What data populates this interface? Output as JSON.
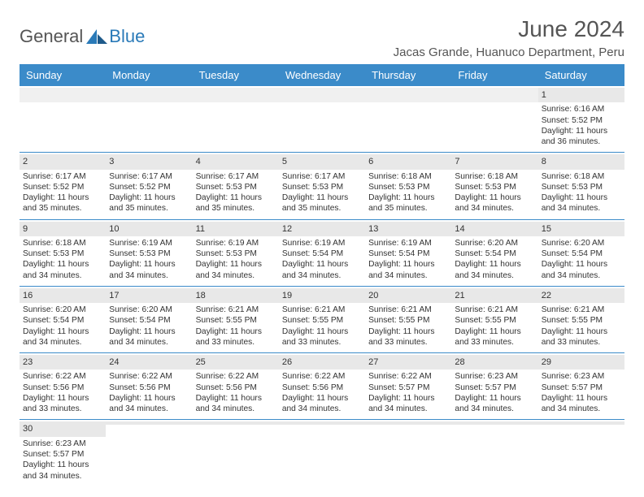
{
  "logo": {
    "part1": "General",
    "part2": "Blue"
  },
  "title": "June 2024",
  "location": "Jacas Grande, Huanuco Department, Peru",
  "colors": {
    "header_bg": "#3b8bc9",
    "header_text": "#ffffff",
    "daynum_bg": "#e8e8e8",
    "border": "#3b8bc9",
    "text": "#333333",
    "logo_blue": "#2a7ab8",
    "logo_gray": "#555555"
  },
  "layout": {
    "type": "calendar",
    "columns": 7,
    "rows": 6,
    "start_day_index": 6
  },
  "day_names": [
    "Sunday",
    "Monday",
    "Tuesday",
    "Wednesday",
    "Thursday",
    "Friday",
    "Saturday"
  ],
  "days": [
    {
      "n": 1,
      "sunrise": "6:16 AM",
      "sunset": "5:52 PM",
      "daylight": "11 hours and 36 minutes."
    },
    {
      "n": 2,
      "sunrise": "6:17 AM",
      "sunset": "5:52 PM",
      "daylight": "11 hours and 35 minutes."
    },
    {
      "n": 3,
      "sunrise": "6:17 AM",
      "sunset": "5:52 PM",
      "daylight": "11 hours and 35 minutes."
    },
    {
      "n": 4,
      "sunrise": "6:17 AM",
      "sunset": "5:53 PM",
      "daylight": "11 hours and 35 minutes."
    },
    {
      "n": 5,
      "sunrise": "6:17 AM",
      "sunset": "5:53 PM",
      "daylight": "11 hours and 35 minutes."
    },
    {
      "n": 6,
      "sunrise": "6:18 AM",
      "sunset": "5:53 PM",
      "daylight": "11 hours and 35 minutes."
    },
    {
      "n": 7,
      "sunrise": "6:18 AM",
      "sunset": "5:53 PM",
      "daylight": "11 hours and 34 minutes."
    },
    {
      "n": 8,
      "sunrise": "6:18 AM",
      "sunset": "5:53 PM",
      "daylight": "11 hours and 34 minutes."
    },
    {
      "n": 9,
      "sunrise": "6:18 AM",
      "sunset": "5:53 PM",
      "daylight": "11 hours and 34 minutes."
    },
    {
      "n": 10,
      "sunrise": "6:19 AM",
      "sunset": "5:53 PM",
      "daylight": "11 hours and 34 minutes."
    },
    {
      "n": 11,
      "sunrise": "6:19 AM",
      "sunset": "5:53 PM",
      "daylight": "11 hours and 34 minutes."
    },
    {
      "n": 12,
      "sunrise": "6:19 AM",
      "sunset": "5:54 PM",
      "daylight": "11 hours and 34 minutes."
    },
    {
      "n": 13,
      "sunrise": "6:19 AM",
      "sunset": "5:54 PM",
      "daylight": "11 hours and 34 minutes."
    },
    {
      "n": 14,
      "sunrise": "6:20 AM",
      "sunset": "5:54 PM",
      "daylight": "11 hours and 34 minutes."
    },
    {
      "n": 15,
      "sunrise": "6:20 AM",
      "sunset": "5:54 PM",
      "daylight": "11 hours and 34 minutes."
    },
    {
      "n": 16,
      "sunrise": "6:20 AM",
      "sunset": "5:54 PM",
      "daylight": "11 hours and 34 minutes."
    },
    {
      "n": 17,
      "sunrise": "6:20 AM",
      "sunset": "5:54 PM",
      "daylight": "11 hours and 34 minutes."
    },
    {
      "n": 18,
      "sunrise": "6:21 AM",
      "sunset": "5:55 PM",
      "daylight": "11 hours and 33 minutes."
    },
    {
      "n": 19,
      "sunrise": "6:21 AM",
      "sunset": "5:55 PM",
      "daylight": "11 hours and 33 minutes."
    },
    {
      "n": 20,
      "sunrise": "6:21 AM",
      "sunset": "5:55 PM",
      "daylight": "11 hours and 33 minutes."
    },
    {
      "n": 21,
      "sunrise": "6:21 AM",
      "sunset": "5:55 PM",
      "daylight": "11 hours and 33 minutes."
    },
    {
      "n": 22,
      "sunrise": "6:21 AM",
      "sunset": "5:55 PM",
      "daylight": "11 hours and 33 minutes."
    },
    {
      "n": 23,
      "sunrise": "6:22 AM",
      "sunset": "5:56 PM",
      "daylight": "11 hours and 33 minutes."
    },
    {
      "n": 24,
      "sunrise": "6:22 AM",
      "sunset": "5:56 PM",
      "daylight": "11 hours and 34 minutes."
    },
    {
      "n": 25,
      "sunrise": "6:22 AM",
      "sunset": "5:56 PM",
      "daylight": "11 hours and 34 minutes."
    },
    {
      "n": 26,
      "sunrise": "6:22 AM",
      "sunset": "5:56 PM",
      "daylight": "11 hours and 34 minutes."
    },
    {
      "n": 27,
      "sunrise": "6:22 AM",
      "sunset": "5:57 PM",
      "daylight": "11 hours and 34 minutes."
    },
    {
      "n": 28,
      "sunrise": "6:23 AM",
      "sunset": "5:57 PM",
      "daylight": "11 hours and 34 minutes."
    },
    {
      "n": 29,
      "sunrise": "6:23 AM",
      "sunset": "5:57 PM",
      "daylight": "11 hours and 34 minutes."
    },
    {
      "n": 30,
      "sunrise": "6:23 AM",
      "sunset": "5:57 PM",
      "daylight": "11 hours and 34 minutes."
    }
  ],
  "labels": {
    "sunrise": "Sunrise:",
    "sunset": "Sunset:",
    "daylight": "Daylight:"
  }
}
